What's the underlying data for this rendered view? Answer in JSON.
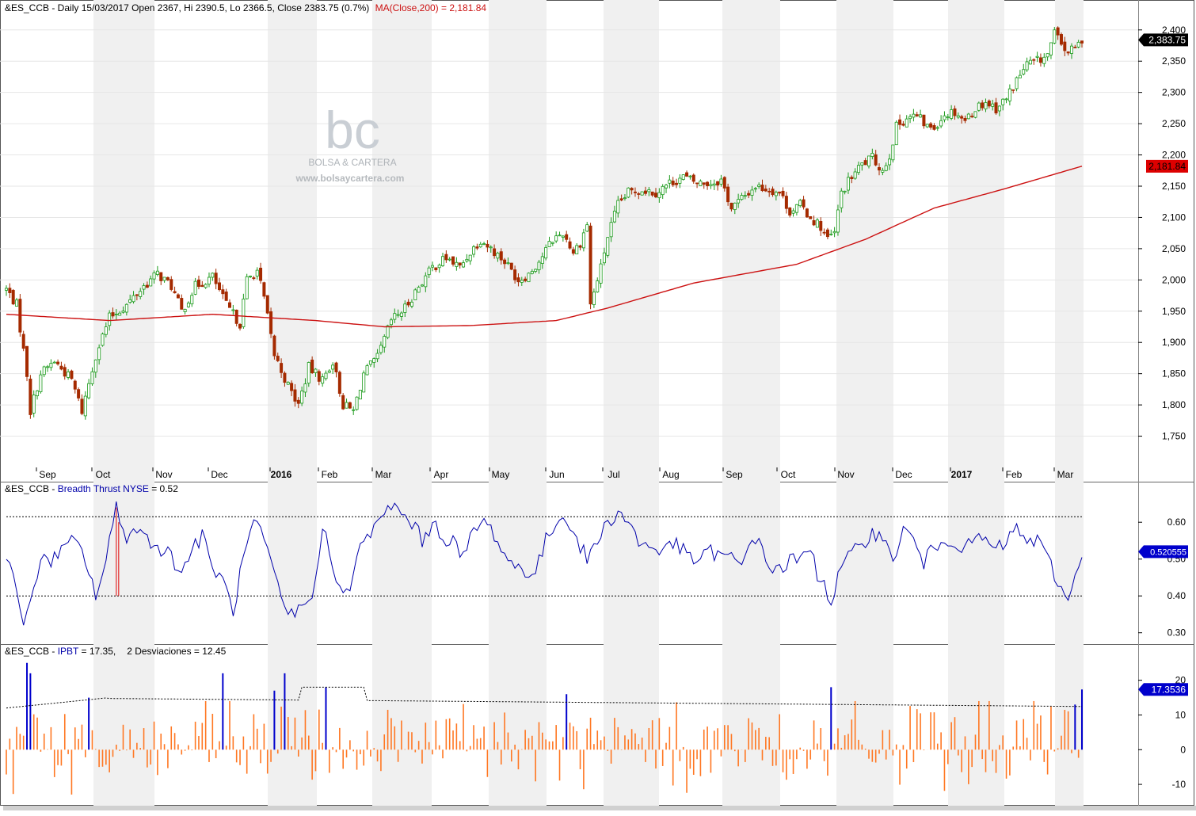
{
  "header": {
    "main": "&ES_CCB - Daily 15/03/2017 Open 2367, Hi 2390.5, Lo 2366.5, Close 2383.75 (0.7%)",
    "main_ma": "MA(Close,200) = 2,181.84",
    "breadth_prefix": "&ES_CCB - ",
    "breadth_name": "Breadth Thrust NYSE",
    "breadth_value": " = 0.52",
    "ipbt_prefix": "&ES_CCB - ",
    "ipbt_name": "IPBT",
    "ipbt_value": " = 17.35,",
    "ipbt_dev": "2 Desviaciones = 12.45"
  },
  "watermark": {
    "logo": "bc",
    "brand": "BOLSA & CARTERA",
    "url": "www.bolsaycartera.com"
  },
  "colors": {
    "up": "#1a9a1a",
    "down": "#a52a00",
    "ma": "#cc1111",
    "breadth": "#0000aa",
    "ipbt_bar": "#ff7722",
    "ipbt_signal": "#0000cc",
    "band": "#f0f0f0"
  },
  "chart_data": [
    {
      "type": "candlestick",
      "pane": "price",
      "ylim": [
        1700,
        2420
      ],
      "y_ticks": [
        "1,750",
        "1,800",
        "1,850",
        "1,900",
        "1,950",
        "2,000",
        "2,050",
        "2,100",
        "2,150",
        "2,200",
        "2,250",
        "2,300",
        "2,350",
        "2,400"
      ],
      "x_labels": [
        "Sep",
        "Oct",
        "Nov",
        "Dec",
        "2016",
        "Feb",
        "Mar",
        "Apr",
        "May",
        "Jun",
        "Jul",
        "Aug",
        "Sep",
        "Oct",
        "Nov",
        "Dec",
        "2017",
        "Feb",
        "Mar"
      ],
      "x_label_bold": [
        false,
        false,
        false,
        false,
        true,
        false,
        false,
        false,
        false,
        false,
        false,
        false,
        false,
        false,
        false,
        false,
        true,
        false,
        false
      ],
      "last_close_label": "2,383.75",
      "ma_label": "2,181.84",
      "close_anchors": [
        [
          0,
          1985
        ],
        [
          3,
          1960
        ],
        [
          6,
          1850
        ],
        [
          7,
          1790
        ],
        [
          10,
          1850
        ],
        [
          14,
          1870
        ],
        [
          19,
          1840
        ],
        [
          22,
          1790
        ],
        [
          26,
          1880
        ],
        [
          30,
          1940
        ],
        [
          35,
          1960
        ],
        [
          40,
          1990
        ],
        [
          44,
          2010
        ],
        [
          48,
          1990
        ],
        [
          51,
          1950
        ],
        [
          55,
          1990
        ],
        [
          60,
          2005
        ],
        [
          64,
          1960
        ],
        [
          68,
          1930
        ],
        [
          70,
          2000
        ],
        [
          73,
          2015
        ],
        [
          75,
          1970
        ],
        [
          78,
          1880
        ],
        [
          82,
          1830
        ],
        [
          85,
          1800
        ],
        [
          88,
          1860
        ],
        [
          92,
          1840
        ],
        [
          95,
          1870
        ],
        [
          98,
          1800
        ],
        [
          101,
          1790
        ],
        [
          104,
          1850
        ],
        [
          108,
          1875
        ],
        [
          112,
          1935
        ],
        [
          116,
          1955
        ],
        [
          120,
          1990
        ],
        [
          124,
          2020
        ],
        [
          128,
          2035
        ],
        [
          132,
          2020
        ],
        [
          135,
          2045
        ],
        [
          138,
          2065
        ],
        [
          141,
          2050
        ],
        [
          145,
          2030
        ],
        [
          149,
          2000
        ],
        [
          152,
          2010
        ],
        [
          155,
          2030
        ],
        [
          159,
          2065
        ],
        [
          162,
          2075
        ],
        [
          165,
          2045
        ],
        [
          167,
          2060
        ],
        [
          169,
          2090
        ],
        [
          170,
          1960
        ],
        [
          173,
          2020
        ],
        [
          175,
          2070
        ],
        [
          178,
          2120
        ],
        [
          181,
          2140
        ],
        [
          185,
          2145
        ],
        [
          189,
          2140
        ],
        [
          193,
          2155
        ],
        [
          197,
          2165
        ],
        [
          201,
          2155
        ],
        [
          205,
          2155
        ],
        [
          208,
          2160
        ],
        [
          211,
          2115
        ],
        [
          214,
          2130
        ],
        [
          218,
          2150
        ],
        [
          222,
          2145
        ],
        [
          225,
          2140
        ],
        [
          228,
          2110
        ],
        [
          231,
          2120
        ],
        [
          234,
          2100
        ],
        [
          237,
          2085
        ],
        [
          239,
          2065
        ],
        [
          241,
          2075
        ],
        [
          243,
          2140
        ],
        [
          246,
          2165
        ],
        [
          249,
          2185
        ],
        [
          252,
          2195
        ],
        [
          255,
          2175
        ],
        [
          257,
          2200
        ],
        [
          259,
          2245
        ],
        [
          262,
          2260
        ],
        [
          265,
          2262
        ],
        [
          268,
          2245
        ],
        [
          270,
          2245
        ],
        [
          273,
          2265
        ],
        [
          276,
          2270
        ],
        [
          279,
          2255
        ],
        [
          282,
          2275
        ],
        [
          285,
          2285
        ],
        [
          288,
          2275
        ],
        [
          291,
          2290
        ],
        [
          294,
          2320
        ],
        [
          297,
          2345
        ],
        [
          300,
          2350
        ],
        [
          303,
          2360
        ],
        [
          305,
          2395
        ],
        [
          307,
          2375
        ],
        [
          309,
          2365
        ],
        [
          311,
          2370
        ],
        [
          313,
          2384
        ]
      ],
      "ma200": [
        [
          0,
          1945
        ],
        [
          30,
          1935
        ],
        [
          60,
          1945
        ],
        [
          90,
          1935
        ],
        [
          110,
          1925
        ],
        [
          135,
          1927
        ],
        [
          160,
          1935
        ],
        [
          175,
          1955
        ],
        [
          200,
          1995
        ],
        [
          230,
          2025
        ],
        [
          250,
          2065
        ],
        [
          270,
          2115
        ],
        [
          290,
          2145
        ],
        [
          313,
          2182
        ]
      ]
    },
    {
      "type": "line",
      "pane": "breadth",
      "name": "Breadth Thrust NYSE",
      "ylim": [
        0.28,
        0.68
      ],
      "y_ticks": [
        "0.30",
        "0.40",
        "0.50",
        "0.60"
      ],
      "levels": [
        0.615,
        0.4
      ],
      "last_label": "0.520555",
      "signal_index": 32,
      "anchors": [
        [
          0,
          0.52
        ],
        [
          2,
          0.47
        ],
        [
          5,
          0.3
        ],
        [
          8,
          0.44
        ],
        [
          11,
          0.5
        ],
        [
          14,
          0.5
        ],
        [
          17,
          0.53
        ],
        [
          20,
          0.55
        ],
        [
          23,
          0.5
        ],
        [
          26,
          0.4
        ],
        [
          29,
          0.49
        ],
        [
          32,
          0.645
        ],
        [
          35,
          0.56
        ],
        [
          38,
          0.58
        ],
        [
          42,
          0.55
        ],
        [
          45,
          0.53
        ],
        [
          48,
          0.51
        ],
        [
          51,
          0.46
        ],
        [
          54,
          0.53
        ],
        [
          57,
          0.56
        ],
        [
          60,
          0.48
        ],
        [
          63,
          0.44
        ],
        [
          66,
          0.36
        ],
        [
          69,
          0.5
        ],
        [
          72,
          0.6
        ],
        [
          75,
          0.55
        ],
        [
          78,
          0.45
        ],
        [
          81,
          0.36
        ],
        [
          84,
          0.35
        ],
        [
          87,
          0.38
        ],
        [
          90,
          0.43
        ],
        [
          92,
          0.59
        ],
        [
          94,
          0.53
        ],
        [
          97,
          0.42
        ],
        [
          100,
          0.4
        ],
        [
          103,
          0.55
        ],
        [
          106,
          0.57
        ],
        [
          109,
          0.6
        ],
        [
          112,
          0.65
        ],
        [
          115,
          0.62
        ],
        [
          118,
          0.6
        ],
        [
          121,
          0.55
        ],
        [
          124,
          0.6
        ],
        [
          127,
          0.56
        ],
        [
          130,
          0.55
        ],
        [
          133,
          0.5
        ],
        [
          136,
          0.58
        ],
        [
          139,
          0.6
        ],
        [
          142,
          0.57
        ],
        [
          145,
          0.51
        ],
        [
          148,
          0.48
        ],
        [
          151,
          0.47
        ],
        [
          154,
          0.46
        ],
        [
          157,
          0.55
        ],
        [
          160,
          0.6
        ],
        [
          163,
          0.62
        ],
        [
          166,
          0.55
        ],
        [
          169,
          0.5
        ],
        [
          172,
          0.55
        ],
        [
          175,
          0.6
        ],
        [
          178,
          0.63
        ],
        [
          181,
          0.6
        ],
        [
          184,
          0.55
        ],
        [
          187,
          0.53
        ],
        [
          190,
          0.52
        ],
        [
          193,
          0.55
        ],
        [
          196,
          0.53
        ],
        [
          199,
          0.5
        ],
        [
          202,
          0.5
        ],
        [
          205,
          0.52
        ],
        [
          208,
          0.51
        ],
        [
          211,
          0.5
        ],
        [
          214,
          0.48
        ],
        [
          217,
          0.57
        ],
        [
          220,
          0.52
        ],
        [
          223,
          0.47
        ],
        [
          226,
          0.48
        ],
        [
          229,
          0.5
        ],
        [
          232,
          0.5
        ],
        [
          234,
          0.53
        ],
        [
          236,
          0.46
        ],
        [
          238,
          0.44
        ],
        [
          240,
          0.38
        ],
        [
          243,
          0.48
        ],
        [
          246,
          0.51
        ],
        [
          249,
          0.54
        ],
        [
          252,
          0.58
        ],
        [
          255,
          0.55
        ],
        [
          258,
          0.5
        ],
        [
          261,
          0.58
        ],
        [
          264,
          0.55
        ],
        [
          267,
          0.49
        ],
        [
          270,
          0.53
        ],
        [
          273,
          0.56
        ],
        [
          276,
          0.55
        ],
        [
          279,
          0.52
        ],
        [
          282,
          0.56
        ],
        [
          285,
          0.55
        ],
        [
          288,
          0.52
        ],
        [
          291,
          0.55
        ],
        [
          294,
          0.58
        ],
        [
          297,
          0.55
        ],
        [
          300,
          0.55
        ],
        [
          303,
          0.5
        ],
        [
          306,
          0.44
        ],
        [
          309,
          0.38
        ],
        [
          311,
          0.46
        ],
        [
          313,
          0.52
        ]
      ]
    },
    {
      "type": "bar",
      "pane": "ipbt",
      "name": "IPBT",
      "ylim": [
        -15,
        27
      ],
      "y_ticks": [
        "20",
        "10",
        "0",
        "-10"
      ],
      "last_label": "17.3536",
      "band_start": 15,
      "band_end": 12.45,
      "signal_bars": [
        [
          6,
          25
        ],
        [
          7,
          22
        ],
        [
          24,
          15
        ],
        [
          63,
          22
        ],
        [
          78,
          17
        ],
        [
          81,
          22
        ],
        [
          93,
          18
        ],
        [
          163,
          16
        ],
        [
          240,
          18
        ],
        [
          311,
          13
        ],
        [
          313,
          17.35
        ]
      ]
    }
  ]
}
